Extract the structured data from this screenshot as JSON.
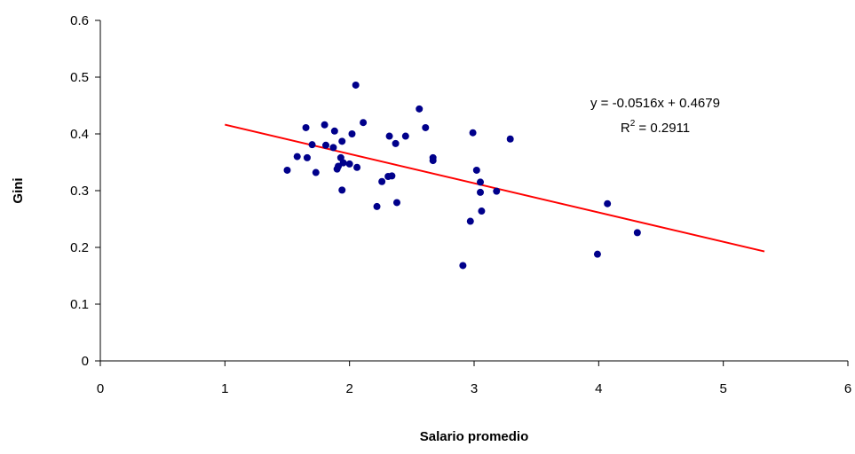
{
  "chart_data": {
    "type": "scatter",
    "xlabel": "Salario promedio",
    "ylabel": "Gini",
    "xlim": [
      0,
      6
    ],
    "ylim": [
      0,
      0.6
    ],
    "x_ticks": [
      "0",
      "1",
      "2",
      "3",
      "4",
      "5",
      "6"
    ],
    "y_ticks": [
      "0",
      "0.1",
      "0.2",
      "0.3",
      "0.4",
      "0.5",
      "0.6"
    ],
    "grid": false,
    "legend": false,
    "colors": {
      "points": "#00008B",
      "trendline": "#FF0000",
      "axis": "#000000"
    },
    "points": [
      {
        "x": 1.5,
        "y": 0.336
      },
      {
        "x": 1.58,
        "y": 0.36
      },
      {
        "x": 1.65,
        "y": 0.411
      },
      {
        "x": 1.66,
        "y": 0.358
      },
      {
        "x": 1.7,
        "y": 0.381
      },
      {
        "x": 1.73,
        "y": 0.332
      },
      {
        "x": 1.8,
        "y": 0.416
      },
      {
        "x": 1.81,
        "y": 0.38
      },
      {
        "x": 1.87,
        "y": 0.376
      },
      {
        "x": 1.88,
        "y": 0.405
      },
      {
        "x": 1.9,
        "y": 0.338
      },
      {
        "x": 1.91,
        "y": 0.343
      },
      {
        "x": 1.93,
        "y": 0.358
      },
      {
        "x": 1.94,
        "y": 0.387
      },
      {
        "x": 1.95,
        "y": 0.349
      },
      {
        "x": 1.94,
        "y": 0.301
      },
      {
        "x": 2.0,
        "y": 0.347
      },
      {
        "x": 2.02,
        "y": 0.4
      },
      {
        "x": 2.05,
        "y": 0.486
      },
      {
        "x": 2.06,
        "y": 0.341
      },
      {
        "x": 2.11,
        "y": 0.42
      },
      {
        "x": 2.22,
        "y": 0.272
      },
      {
        "x": 2.26,
        "y": 0.316
      },
      {
        "x": 2.31,
        "y": 0.325
      },
      {
        "x": 2.32,
        "y": 0.396
      },
      {
        "x": 2.34,
        "y": 0.326
      },
      {
        "x": 2.37,
        "y": 0.383
      },
      {
        "x": 2.38,
        "y": 0.279
      },
      {
        "x": 2.45,
        "y": 0.396
      },
      {
        "x": 2.56,
        "y": 0.444
      },
      {
        "x": 2.61,
        "y": 0.411
      },
      {
        "x": 2.67,
        "y": 0.358
      },
      {
        "x": 2.67,
        "y": 0.353
      },
      {
        "x": 2.91,
        "y": 0.168
      },
      {
        "x": 2.97,
        "y": 0.246
      },
      {
        "x": 2.99,
        "y": 0.402
      },
      {
        "x": 3.02,
        "y": 0.336
      },
      {
        "x": 3.05,
        "y": 0.315
      },
      {
        "x": 3.05,
        "y": 0.297
      },
      {
        "x": 3.06,
        "y": 0.264
      },
      {
        "x": 3.18,
        "y": 0.299
      },
      {
        "x": 3.29,
        "y": 0.391
      },
      {
        "x": 3.99,
        "y": 0.188
      },
      {
        "x": 4.07,
        "y": 0.277
      },
      {
        "x": 4.31,
        "y": 0.226
      }
    ],
    "trendline": {
      "slope": -0.0516,
      "intercept": 0.4679,
      "x_range": [
        1,
        5.33
      ],
      "equation_text": "y = -0.0516x + 0.4679",
      "r2_label": "R",
      "r2_sup": "2",
      "r2_value_text": " = 0.2911"
    }
  }
}
